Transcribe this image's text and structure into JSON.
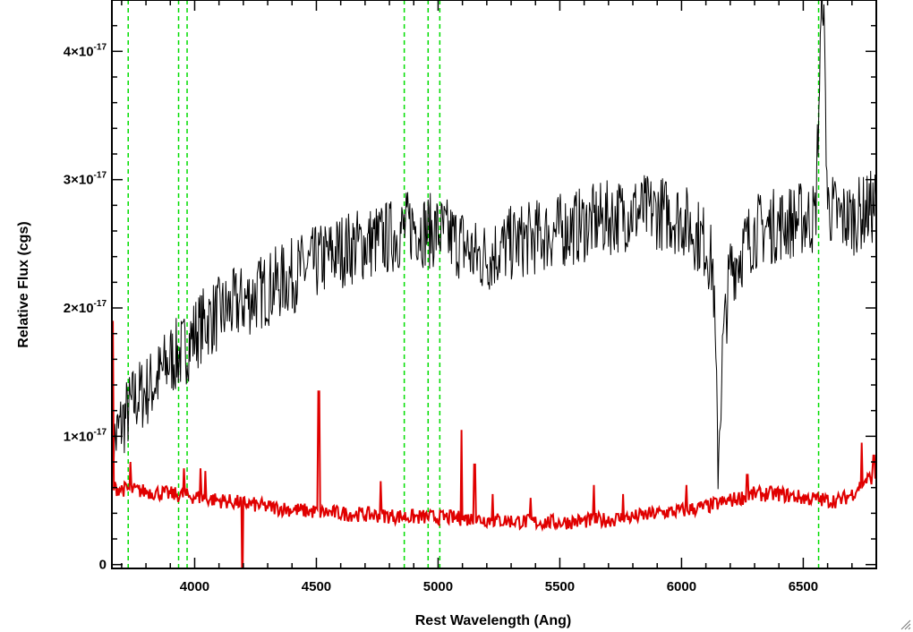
{
  "chart_data": {
    "type": "line",
    "title": "",
    "xlabel": "Rest Wavelength (Ang)",
    "ylabel": "Relative Flux (cgs)",
    "xlim": [
      3660,
      6800
    ],
    "ylim": [
      -3e-19,
      4.4e-17
    ],
    "x_ticks": [
      4000,
      4500,
      5000,
      5500,
      6000,
      6500
    ],
    "x_tick_labels": [
      "4000",
      "4500",
      "5000",
      "5500",
      "6000",
      "6500"
    ],
    "y_ticks": [
      0,
      1e-17,
      2e-17,
      3e-17,
      4e-17
    ],
    "y_tick_labels": [
      {
        "mantissa": "0",
        "exponent": ""
      },
      {
        "mantissa": "1×10",
        "exponent": "-17"
      },
      {
        "mantissa": "2×10",
        "exponent": "-17"
      },
      {
        "mantissa": "3×10",
        "exponent": "-17"
      },
      {
        "mantissa": "4×10",
        "exponent": "-17"
      }
    ],
    "grid": false,
    "series": [
      {
        "color": "#000000",
        "style": "noisy spectrum",
        "x": [
          3660,
          3700,
          3730,
          3760,
          3800,
          3850,
          3900,
          3950,
          4000,
          4050,
          4100,
          4150,
          4200,
          4300,
          4400,
          4500,
          4600,
          4700,
          4800,
          4850,
          4900,
          4950,
          5000,
          5050,
          5100,
          5150,
          5200,
          5300,
          5400,
          5500,
          5600,
          5700,
          5800,
          5900,
          6000,
          6050,
          6100,
          6130,
          6150,
          6170,
          6200,
          6300,
          6400,
          6500,
          6550,
          6580,
          6600,
          6650,
          6700,
          6750,
          6800
        ],
        "values": [
          9e-18,
          1.1e-17,
          1.2e-17,
          1.3e-17,
          1.35e-17,
          1.45e-17,
          1.6e-17,
          1.65e-17,
          1.8e-17,
          1.9e-17,
          1.95e-17,
          2e-17,
          2.05e-17,
          2.15e-17,
          2.25e-17,
          2.35e-17,
          2.45e-17,
          2.5e-17,
          2.55e-17,
          2.6e-17,
          2.65e-17,
          2.6e-17,
          2.6e-17,
          2.55e-17,
          2.5e-17,
          2.4e-17,
          2.4e-17,
          2.5e-17,
          2.55e-17,
          2.6e-17,
          2.65e-17,
          2.7e-17,
          2.75e-17,
          2.75e-17,
          2.7e-17,
          2.6e-17,
          2.5e-17,
          2.3e-17,
          8e-18,
          1.7e-17,
          2.3e-17,
          2.6e-17,
          2.65e-17,
          2.7e-17,
          2.7e-17,
          4.6e-17,
          2.8e-17,
          2.7e-17,
          2.7e-17,
          2.75e-17,
          2.8e-17
        ],
        "noise": 3e-18
      },
      {
        "color": "#e00000",
        "style": "error spectrum",
        "x": [
          3660,
          3700,
          3800,
          3900,
          4000,
          4100,
          4200,
          4300,
          4400,
          4500,
          4600,
          4700,
          4800,
          4900,
          5000,
          5100,
          5200,
          5300,
          5400,
          5500,
          5600,
          5700,
          5800,
          5900,
          6000,
          6100,
          6200,
          6300,
          6400,
          6500,
          6600,
          6650,
          6700,
          6750,
          6800
        ],
        "values": [
          6e-18,
          5.9e-18,
          5.7e-18,
          5.5e-18,
          5.3e-18,
          5e-18,
          4.8e-18,
          4.5e-18,
          4.3e-18,
          4.1e-18,
          4e-18,
          3.9e-18,
          3.8e-18,
          3.7e-18,
          3.7e-18,
          3.6e-18,
          3.5e-18,
          3.4e-18,
          3.3e-18,
          3.3e-18,
          3.4e-18,
          3.5e-18,
          3.7e-18,
          4e-18,
          4.2e-18,
          4.5e-18,
          5e-18,
          5.5e-18,
          5.5e-18,
          5.2e-18,
          5e-18,
          5e-18,
          5.5e-18,
          6.5e-18,
          7e-18
        ],
        "spikes": [
          [
            3665,
            1.9e-17
          ],
          [
            3735,
            8e-18
          ],
          [
            3955,
            7.5e-18
          ],
          [
            4025,
            7.5e-18
          ],
          [
            4045,
            7.3e-18
          ],
          [
            4195,
            -3e-18
          ],
          [
            4510,
            1.35e-17
          ],
          [
            4765,
            6.5e-18
          ],
          [
            5095,
            1.05e-17
          ],
          [
            5150,
            7.8e-18
          ],
          [
            5225,
            5.5e-18
          ],
          [
            5380,
            5.2e-18
          ],
          [
            5640,
            6.2e-18
          ],
          [
            5760,
            5.5e-18
          ],
          [
            6020,
            6.2e-18
          ],
          [
            6270,
            7e-18
          ],
          [
            6740,
            9.5e-18
          ],
          [
            6790,
            8.5e-18
          ]
        ],
        "noise": 6e-19
      }
    ],
    "vlines": {
      "color": "#00dd00",
      "style": "dashed",
      "x": [
        3727,
        3934,
        3969,
        4861,
        4959,
        5007,
        6563
      ]
    }
  }
}
